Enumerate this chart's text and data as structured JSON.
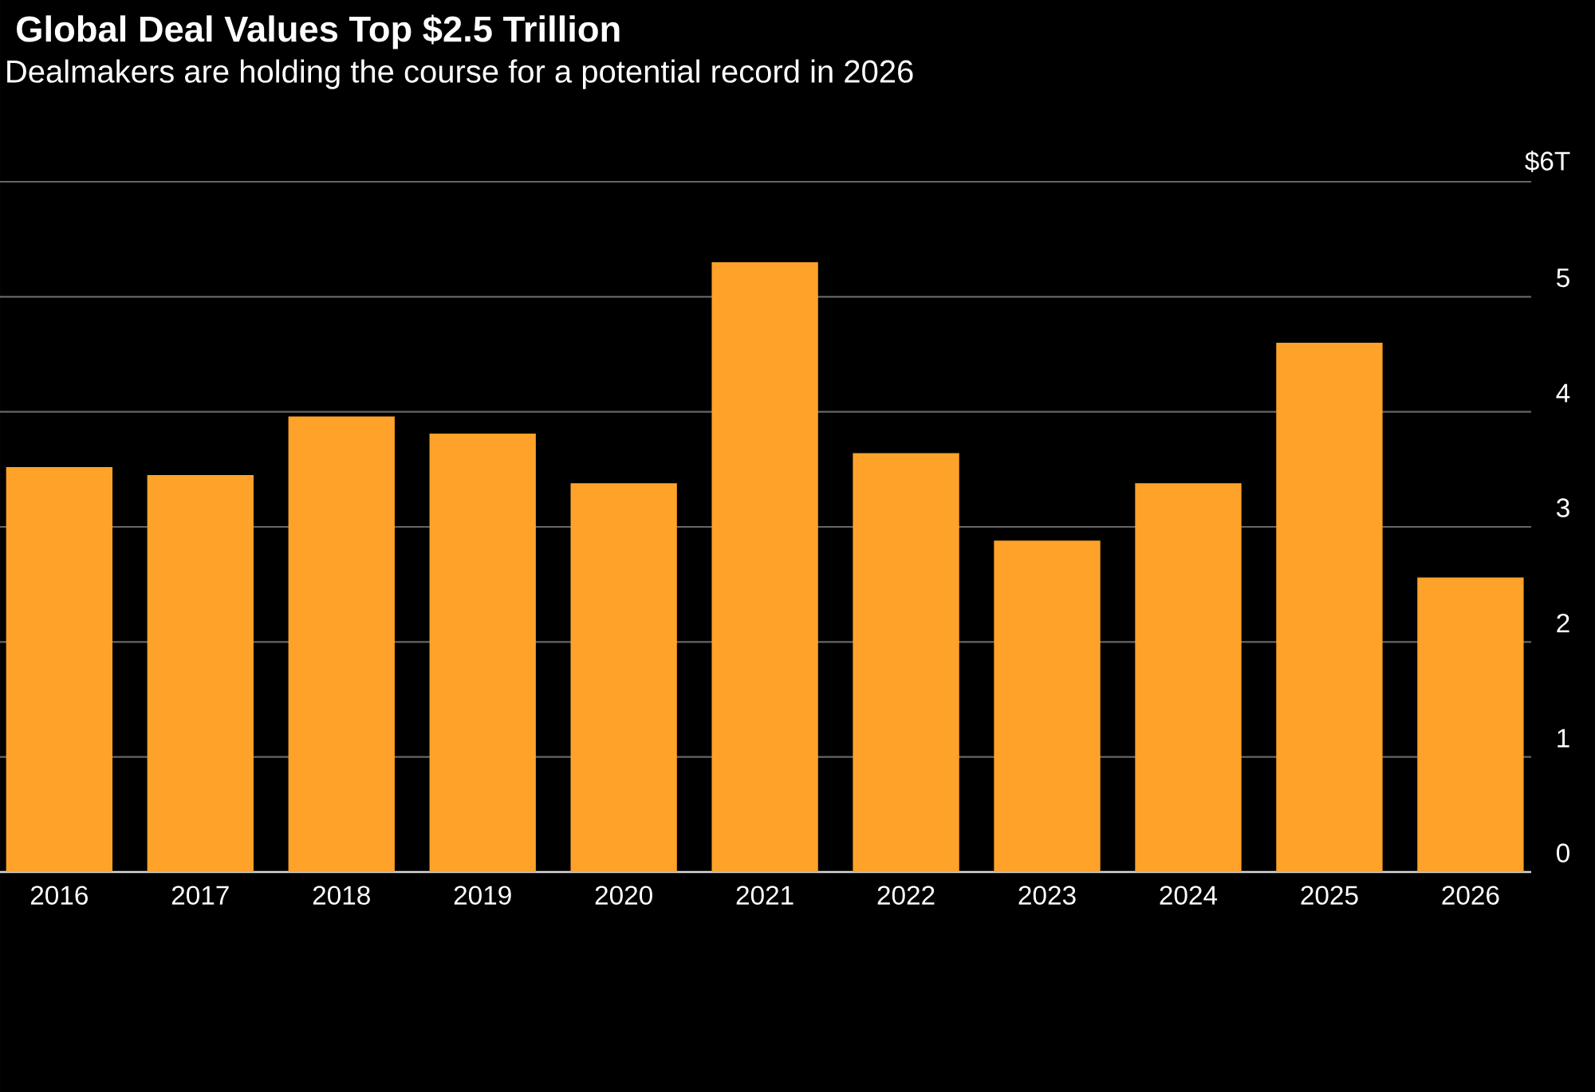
{
  "chart_data": {
    "type": "bar",
    "title": "Global Deal Values Top $2.5 Trillion",
    "subtitle": "Dealmakers are holding the course for a potential record in 2026",
    "categories": [
      "2016",
      "2017",
      "2018",
      "2019",
      "2020",
      "2021",
      "2022",
      "2023",
      "2024",
      "2025",
      "2026"
    ],
    "values": [
      3.52,
      3.45,
      3.96,
      3.81,
      3.38,
      5.3,
      3.64,
      2.88,
      3.38,
      4.6,
      2.56
    ],
    "color": "#ffa229",
    "ylim": [
      0,
      6
    ],
    "yticks": [
      0,
      1,
      2,
      3,
      4,
      5,
      {
        "value": 6,
        "label": "$6T"
      }
    ],
    "grid": "y"
  }
}
